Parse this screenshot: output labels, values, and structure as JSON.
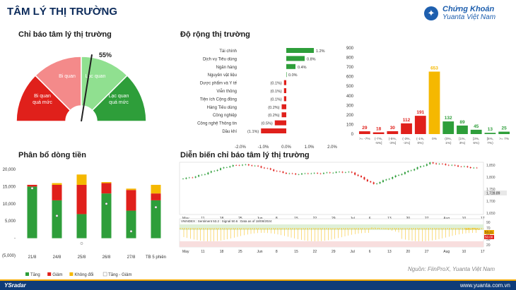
{
  "header": {
    "title": "TÂM LÝ THỊ TRƯỜNG",
    "logo_line1": "Chứng Khoán",
    "logo_line2": "Yuanta Việt Nam"
  },
  "sections": {
    "gauge_title": "Chỉ báo tâm lý thị trường",
    "breadth_title": "Độ rộng thị trường",
    "flow_title": "Phân bổ dòng tiền",
    "sentiment_title": "Diễn biến chỉ báo tâm lý thị trường"
  },
  "colors": {
    "green": "#2e9e3a",
    "red": "#e0201b",
    "yellow": "#f5b800",
    "lightred": "#f48a8a",
    "lightgreen": "#90e090"
  },
  "chart_data": [
    {
      "type": "gauge",
      "value_label": "55%",
      "value": 55,
      "segments": [
        "Bi quan quá mức",
        "Bi quan",
        "Lạc quan",
        "Lạc quan quá mức"
      ]
    },
    {
      "type": "bar",
      "orientation": "horizontal",
      "categories": [
        "Tài chính",
        "Dịch vụ Tiêu dùng",
        "Ngân hàng",
        "Nguyên vật liệu",
        "Dược phẩm và Y tế",
        "Viễn thông",
        "Tiện ích Cộng đồng",
        "Hàng Tiêu dùng",
        "Công nghiệp",
        "Công nghệ Thông tin",
        "Dầu khí"
      ],
      "values": [
        1.2,
        0.8,
        0.4,
        0.0,
        -0.1,
        -0.1,
        -0.1,
        -0.2,
        -0.2,
        -0.5,
        -1.1
      ],
      "value_labels": [
        "1.2%",
        "0.8%",
        "0.4%",
        "0.0%",
        "(0.1%)",
        "(0.1%)",
        "(0.1%)",
        "(0.2%)",
        "(0.2%)",
        "(0.5%)",
        "(1.1%)"
      ],
      "xticks": [
        "-2.0%",
        "-1.0%",
        "0.0%",
        "1.0%",
        "2.0%"
      ],
      "xlim": [
        -2.0,
        2.0
      ]
    },
    {
      "type": "bar",
      "categories": [
        ">= -7%",
        "(-7%, -5%]",
        "(-5%, -3%]",
        "(-3%, -1%]",
        "(-1%, 0%)",
        "0%",
        "(0%, 1%)",
        "[1%, 3%)",
        "[3%, 5%)",
        "[5%, 7%)",
        ">= 7%"
      ],
      "values": [
        29,
        18,
        30,
        112,
        191,
        653,
        132,
        89,
        45,
        13,
        25
      ],
      "ylim": [
        0,
        900
      ],
      "yticks": [
        "0",
        "100",
        "200",
        "300",
        "400",
        "500",
        "600",
        "700",
        "800",
        "900"
      ]
    },
    {
      "type": "bar",
      "stacked": true,
      "categories": [
        "21/8",
        "24/8",
        "25/8",
        "26/8",
        "27/8",
        "TB 5 phiên"
      ],
      "series": [
        {
          "name": "Tăng",
          "values": [
            15000,
            11000,
            7000,
            13000,
            8000,
            11000
          ]
        },
        {
          "name": "Giảm",
          "values": [
            500,
            4500,
            8500,
            3000,
            6000,
            2000
          ]
        },
        {
          "name": "Không đổi",
          "values": [
            0,
            500,
            3000,
            300,
            400,
            2500
          ]
        }
      ],
      "net": {
        "name": "Tăng - Giảm",
        "values": [
          14500,
          6500,
          -1500,
          10000,
          2000,
          9000
        ]
      },
      "yticks": [
        "20,000",
        "15,000",
        "10,000",
        "5,000",
        "-",
        "(5,000)"
      ],
      "ylim": [
        -5000,
        20000
      ]
    },
    {
      "type": "line",
      "info_line": "VNINDEX : Sentiment 53.2 : Signal 50.6 : Data as of 18/08/2024",
      "x_ticks": [
        "May",
        "11",
        "18",
        "25",
        "Jun",
        "8",
        "15",
        "22",
        "29",
        "Jul",
        "6",
        "13",
        "20",
        "27",
        "Aug",
        "10",
        "17"
      ],
      "y_ticks_price": [
        "1,850",
        "1,800",
        "1,750",
        "1,700",
        "1,650"
      ],
      "last_price": "1,728.89",
      "y_ticks_sentiment": [
        "90",
        "70",
        "50",
        "30",
        "20"
      ],
      "band_labels": [
        "NEUTRAL",
        "53.21",
        "50.00"
      ]
    }
  ],
  "legend": {
    "up": "Tăng",
    "down": "Giảm",
    "flat": "Không đổi",
    "net": "Tăng - Giảm"
  },
  "footer": {
    "source": "Nguồn: FiinProX, Yuanta Việt Nam",
    "brand": "YSradar",
    "url": "www.yuanta.com.vn"
  }
}
